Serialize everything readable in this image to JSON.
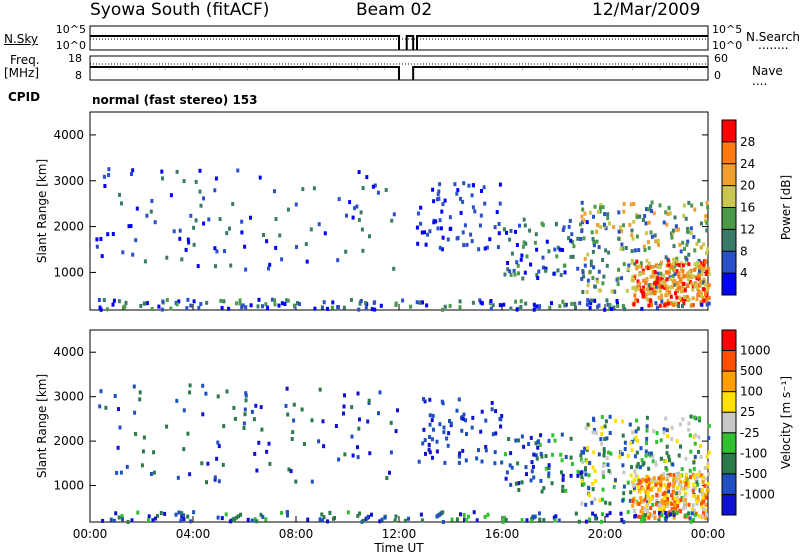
{
  "header": {
    "station": "Syowa South (fitACF)",
    "beam": "Beam 02",
    "date": "12/Mar/2009"
  },
  "side_labels": {
    "nsky": "N.Sky",
    "freq": "Freq.",
    "freq_unit": "[MHz]",
    "cpid": "CPID",
    "nsearch": "N.Search",
    "nave": "Nave",
    "dots": "........",
    "dots_short": "...."
  },
  "mode_text": "normal (fast stereo) 153",
  "colors": {
    "power_scale": [
      "#0000ff",
      "#2a50c8",
      "#3a7a6a",
      "#4a9a4a",
      "#c8c850",
      "#f0a030",
      "#ff7a10",
      "#ff0000"
    ],
    "velocity_scale": [
      "#ff0000",
      "#ff5000",
      "#ffa000",
      "#ffe000",
      "#c8c8c8",
      "#30c030",
      "#2a7a4a",
      "#2050c0",
      "#1010d0"
    ]
  },
  "chart_data": [
    {
      "type": "line",
      "title": "",
      "series": [
        {
          "name": "N.Sky",
          "left_axis": [
            "10^5",
            "10^0"
          ]
        },
        {
          "name": "N.Search",
          "right_axis": [
            "10^5",
            "10^0"
          ]
        }
      ],
      "left_ticks": [
        "10^5",
        "10^0"
      ],
      "right_ticks": [
        "10^5",
        "10^0"
      ]
    },
    {
      "type": "line",
      "title": "",
      "series": [
        {
          "name": "Freq. [MHz]"
        },
        {
          "name": "Nave"
        }
      ],
      "left_ticks": [
        "18",
        "8"
      ],
      "right_ticks": [
        "60",
        "0"
      ]
    },
    {
      "type": "heatmap",
      "name": "power",
      "xlabel": "",
      "ylabel": "Slant Range [km]",
      "ylim": [
        180,
        4500
      ],
      "y_ticks": [
        "1000",
        "2000",
        "3000",
        "4000"
      ],
      "colorbar_label": "Power [dB]",
      "colorbar_ticks": [
        "4",
        "8",
        "12",
        "16",
        "20",
        "24",
        "28"
      ],
      "colorbar_range": [
        0,
        32
      ]
    },
    {
      "type": "heatmap",
      "name": "velocity",
      "xlabel": "Time UT",
      "ylabel": "Slant Range [km]",
      "ylim": [
        180,
        4500
      ],
      "y_ticks": [
        "1000",
        "2000",
        "3000",
        "4000"
      ],
      "x_ticks": [
        "00:00",
        "04:00",
        "08:00",
        "12:00",
        "16:00",
        "20:00",
        "00:00"
      ],
      "colorbar_label": "Velocity [m s⁻¹]",
      "colorbar_ticks": [
        "1000",
        "500",
        "100",
        "25",
        "-25",
        "-100",
        "-500",
        "-1000"
      ]
    }
  ]
}
